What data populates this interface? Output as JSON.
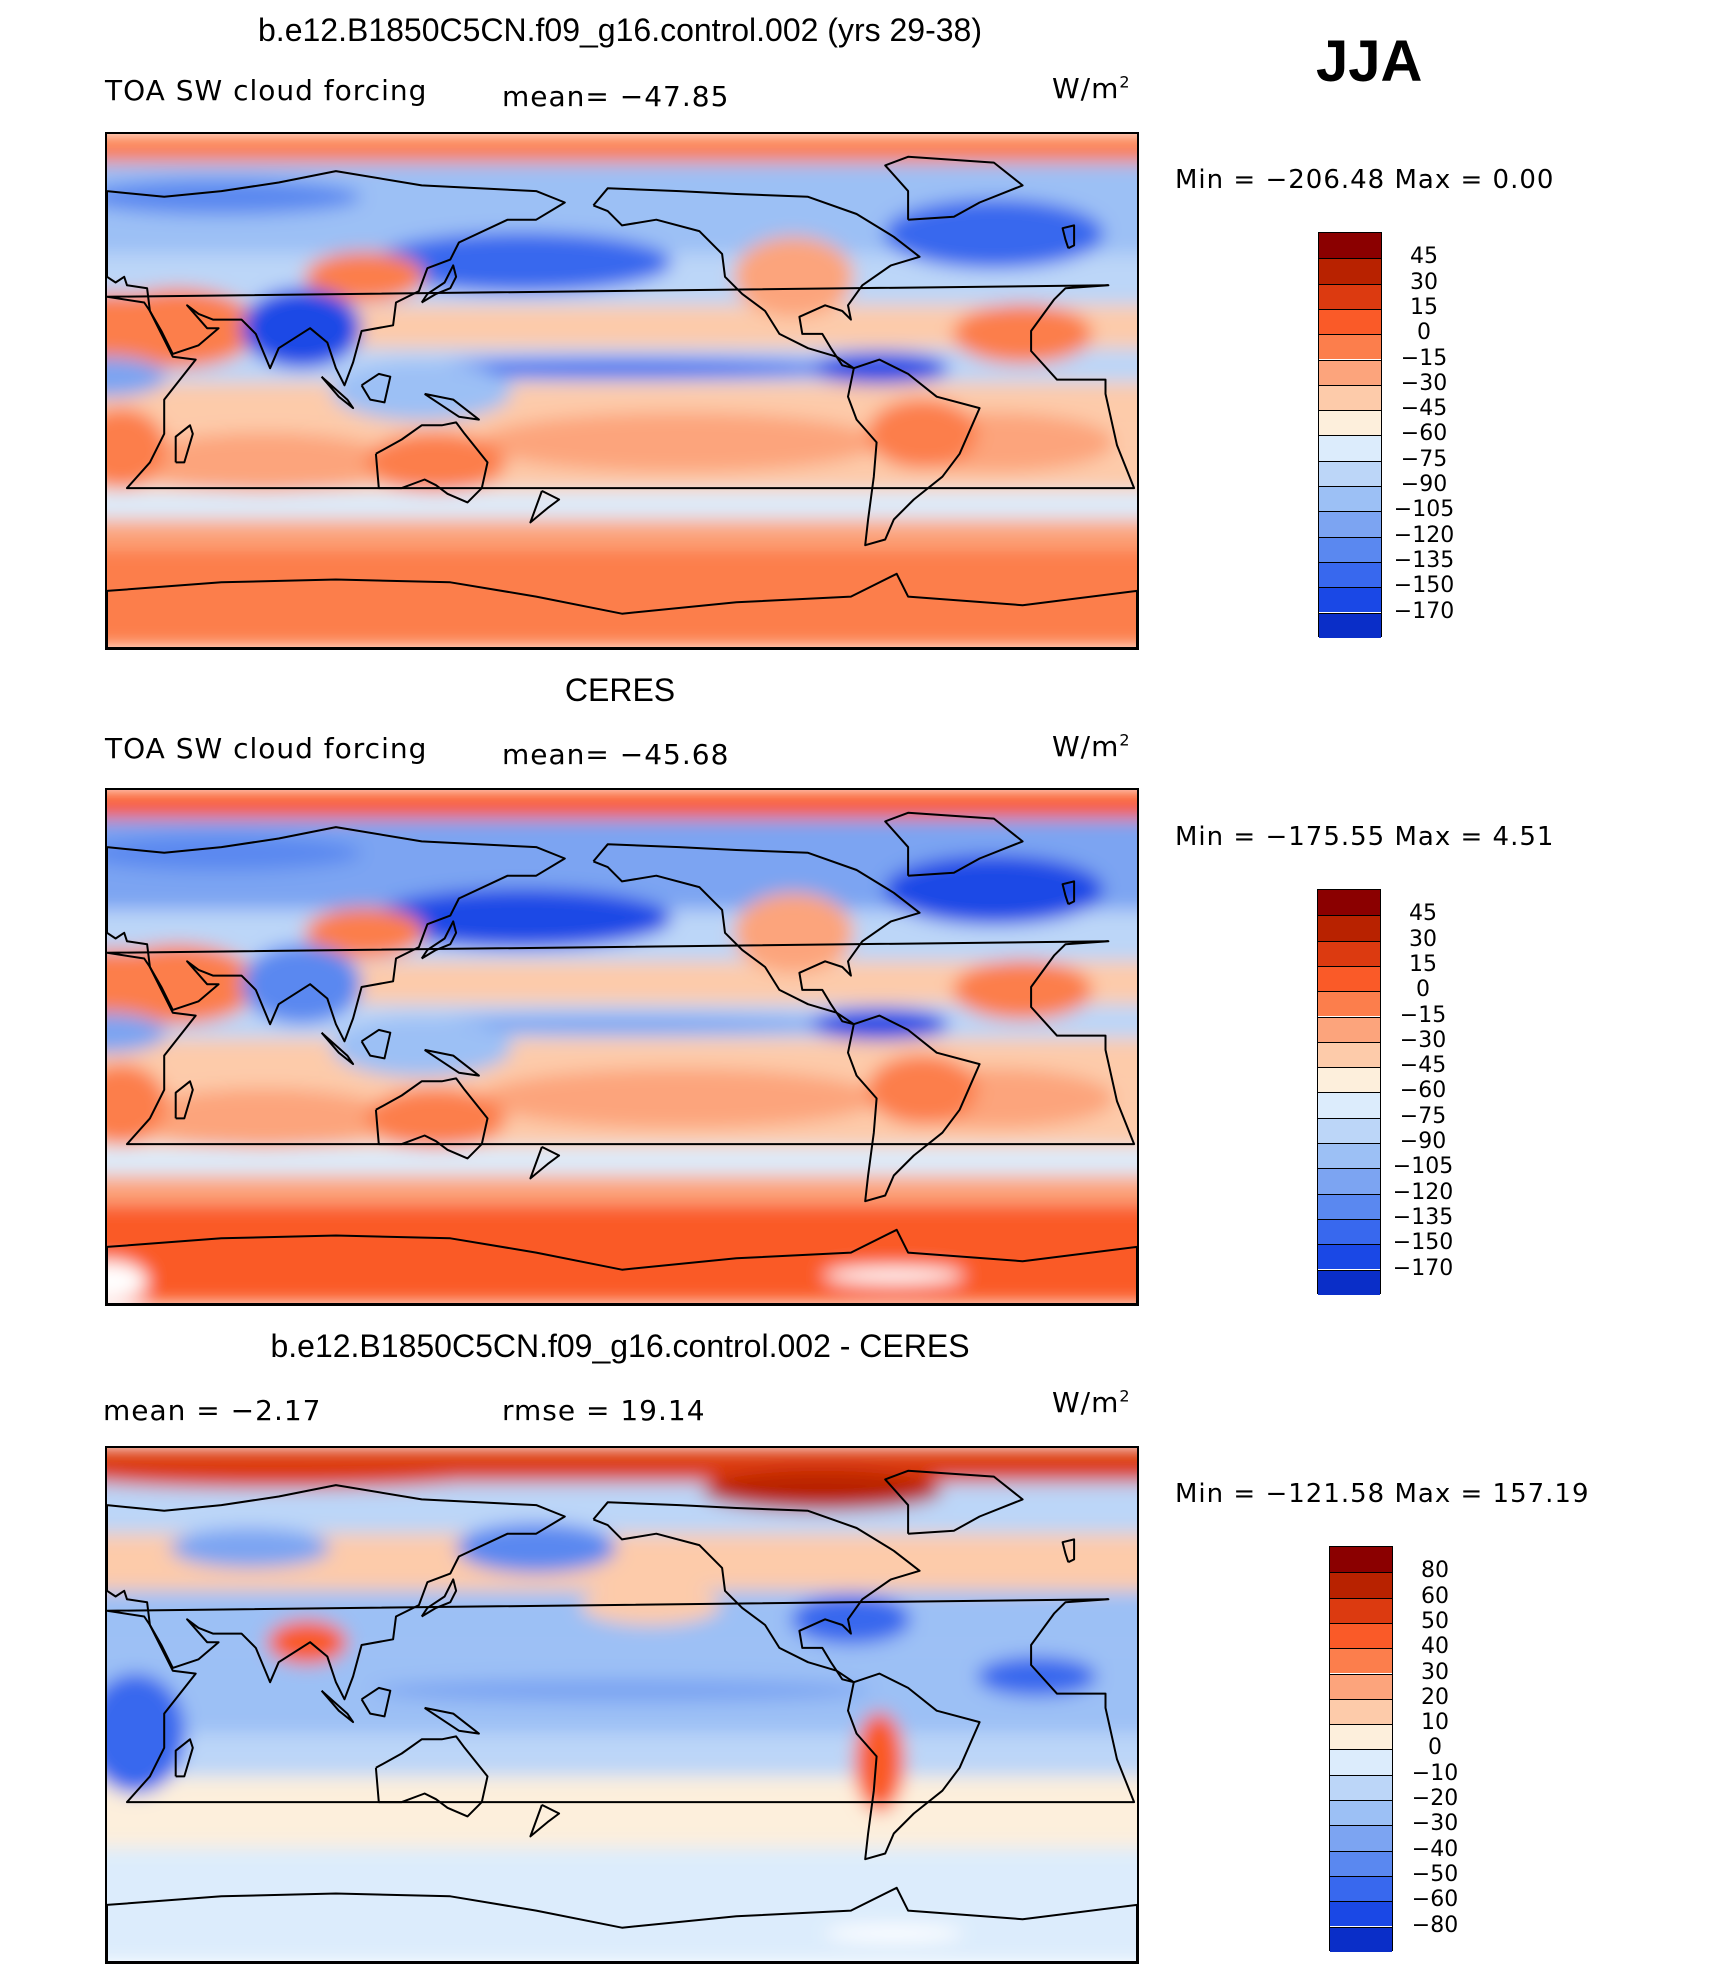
{
  "season": "JJA",
  "palette_pos": [
    "#8b0000",
    "#b82200",
    "#dc3a10",
    "#fa5a28",
    "#fc7e4c",
    "#fca47c",
    "#fdcbaa",
    "#fdefdc"
  ],
  "palette_neg": [
    "#dcecfc",
    "#bcd6f8",
    "#9cc0f5",
    "#7ca4f2",
    "#5a88f0",
    "#3868ee",
    "#1a48e6",
    "#0a2ec8",
    "#041890"
  ],
  "panels": [
    {
      "title": "b.e12.B1850C5CN.f09_g16.control.002 (yrs 29-38)",
      "left_label": "TOA SW cloud forcing",
      "mid_label": "mean=  −47.85",
      "units": "W/m",
      "units_sup": "2",
      "min_max": "Min  =  −206.48  Max  =      0.00",
      "levels": [
        "45",
        "30",
        "15",
        "0",
        "−15",
        "−30",
        "−45",
        "−60",
        "−75",
        "−90",
        "−105",
        "−120",
        "−135",
        "−150",
        "−170"
      ]
    },
    {
      "title": "CERES",
      "left_label": "TOA SW cloud forcing",
      "mid_label": "mean=  −45.68",
      "units": "W/m",
      "units_sup": "2",
      "min_max": "Min  =  −175.55  Max  =      4.51",
      "levels": [
        "45",
        "30",
        "15",
        "0",
        "−15",
        "−30",
        "−45",
        "−60",
        "−75",
        "−90",
        "−105",
        "−120",
        "−135",
        "−150",
        "−170"
      ]
    },
    {
      "title": "b.e12.B1850C5CN.f09_g16.control.002 - CERES",
      "left_label": "mean  =     −2.17",
      "mid_label": "rmse  =    19.14",
      "units": "W/m",
      "units_sup": "2",
      "min_max": "Min  =  −121.58  Max  =  157.19",
      "levels": [
        "80",
        "60",
        "50",
        "40",
        "30",
        "20",
        "10",
        "0",
        "−10",
        "−20",
        "−30",
        "−40",
        "−50",
        "−60",
        "−80"
      ]
    }
  ],
  "chart_data": [
    {
      "type": "heatmap",
      "title": "b.e12.B1850C5CN.f09_g16.control.002 (yrs 29-38)",
      "variable": "TOA SW cloud forcing",
      "units": "W/m2",
      "mean": -47.85,
      "min": -206.48,
      "max": 0.0,
      "contour_levels": [
        45,
        30,
        15,
        0,
        -15,
        -30,
        -45,
        -60,
        -75,
        -90,
        -105,
        -120,
        -135,
        -150,
        -170
      ]
    },
    {
      "type": "heatmap",
      "title": "CERES",
      "variable": "TOA SW cloud forcing",
      "units": "W/m2",
      "mean": -45.68,
      "min": -175.55,
      "max": 4.51,
      "contour_levels": [
        45,
        30,
        15,
        0,
        -15,
        -30,
        -45,
        -60,
        -75,
        -90,
        -105,
        -120,
        -135,
        -150,
        -170
      ]
    },
    {
      "type": "heatmap",
      "title": "b.e12.B1850C5CN.f09_g16.control.002 - CERES",
      "units": "W/m2",
      "mean": -2.17,
      "rmse": 19.14,
      "min": -121.58,
      "max": 157.19,
      "contour_levels": [
        80,
        60,
        50,
        40,
        30,
        20,
        10,
        0,
        -10,
        -20,
        -30,
        -40,
        -50,
        -60,
        -80
      ]
    }
  ]
}
